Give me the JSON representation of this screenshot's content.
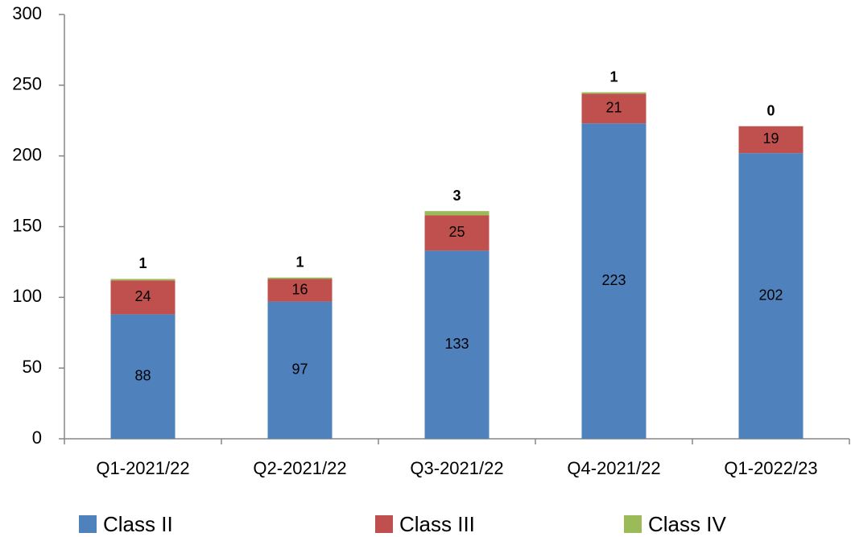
{
  "chart_data": {
    "type": "stacked_bar",
    "categories": [
      "Q1-2021/22",
      "Q2-2021/22",
      "Q3-2021/22",
      "Q4-2021/22",
      "Q1-2022/23"
    ],
    "series": [
      {
        "name": "Class II",
        "color": "#4f81bd",
        "values": [
          88,
          97,
          133,
          223,
          202
        ]
      },
      {
        "name": "Class III",
        "color": "#c0504d",
        "values": [
          24,
          16,
          25,
          21,
          19
        ]
      },
      {
        "name": "Class IV",
        "color": "#9bbb59",
        "values": [
          1,
          1,
          3,
          1,
          0
        ]
      }
    ],
    "ylim": [
      0,
      300
    ],
    "yticks": [
      0,
      50,
      100,
      150,
      200,
      250,
      300
    ],
    "grid": false,
    "legend": "bottom"
  }
}
